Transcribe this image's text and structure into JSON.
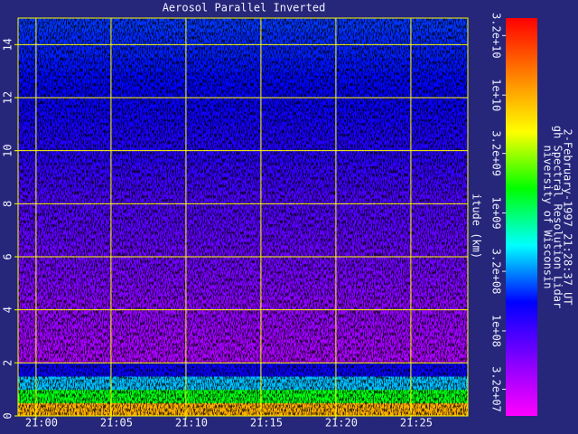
{
  "chart_data": {
    "type": "heatmap",
    "title": "Aerosol Parallel Inverted",
    "y_label": "itude (km)",
    "side_texts": [
      "niversity of Wisconsin",
      "gh Spectral Resolution Lidar",
      "2-February-1997 21:28:37 UT"
    ],
    "xlim": [
      1258.8,
      1288.8
    ],
    "xticks": [
      {
        "value": 1260,
        "label": "21:00"
      },
      {
        "value": 1265,
        "label": "21:05"
      },
      {
        "value": 1270,
        "label": "21:10"
      },
      {
        "value": 1275,
        "label": "21:15"
      },
      {
        "value": 1280,
        "label": "21:20"
      },
      {
        "value": 1285,
        "label": "21:25"
      }
    ],
    "ylim": [
      0,
      15
    ],
    "yticks": [
      0,
      2,
      4,
      6,
      8,
      10,
      12,
      14
    ],
    "grid": true,
    "grid_color": "#ffff00",
    "ybins": [
      0,
      0.5,
      1,
      1.5,
      2,
      2.5,
      3,
      3.5,
      4,
      4.5,
      5,
      5.5,
      6,
      6.5,
      7,
      7.5,
      8,
      8.5,
      9,
      9.5,
      10,
      10.5,
      11,
      11.5,
      12,
      12.5,
      13,
      13.5,
      14,
      14.5,
      15
    ],
    "values": [
      10000000000.0,
      1500000000.0,
      400000000.0,
      160000000.0,
      40000000.0,
      42000000.0,
      45000000.0,
      48000000.0,
      52000000.0,
      56000000.0,
      60000000.0,
      65000000.0,
      70000000.0,
      75000000.0,
      80000000.0,
      85000000.0,
      90000000.0,
      100000000.0,
      110000000.0,
      120000000.0,
      130000000.0,
      140000000.0,
      150000000.0,
      160000000.0,
      170000000.0,
      180000000.0,
      190000000.0,
      200000000.0,
      210000000.0,
      220000000.0
    ],
    "color_scale": "log",
    "zlim": [
      19000000,
      45000000000
    ],
    "zticks": [
      {
        "value": 32000000,
        "label": "3.2e+07"
      },
      {
        "value": 100000000,
        "label": "1e+08"
      },
      {
        "value": 320000000,
        "label": "3.2e+08"
      },
      {
        "value": 1000000000,
        "label": "1e+09"
      },
      {
        "value": 3200000000,
        "label": "3.2e+09"
      },
      {
        "value": 10000000000,
        "label": "1e+10"
      },
      {
        "value": 32000000000,
        "label": "3.2e+10"
      }
    ],
    "colormap": [
      "#ff00ff",
      "#8000ff",
      "#0000ff",
      "#00ffff",
      "#00ff00",
      "#ffff00",
      "#ff8000",
      "#ff0000"
    ]
  }
}
